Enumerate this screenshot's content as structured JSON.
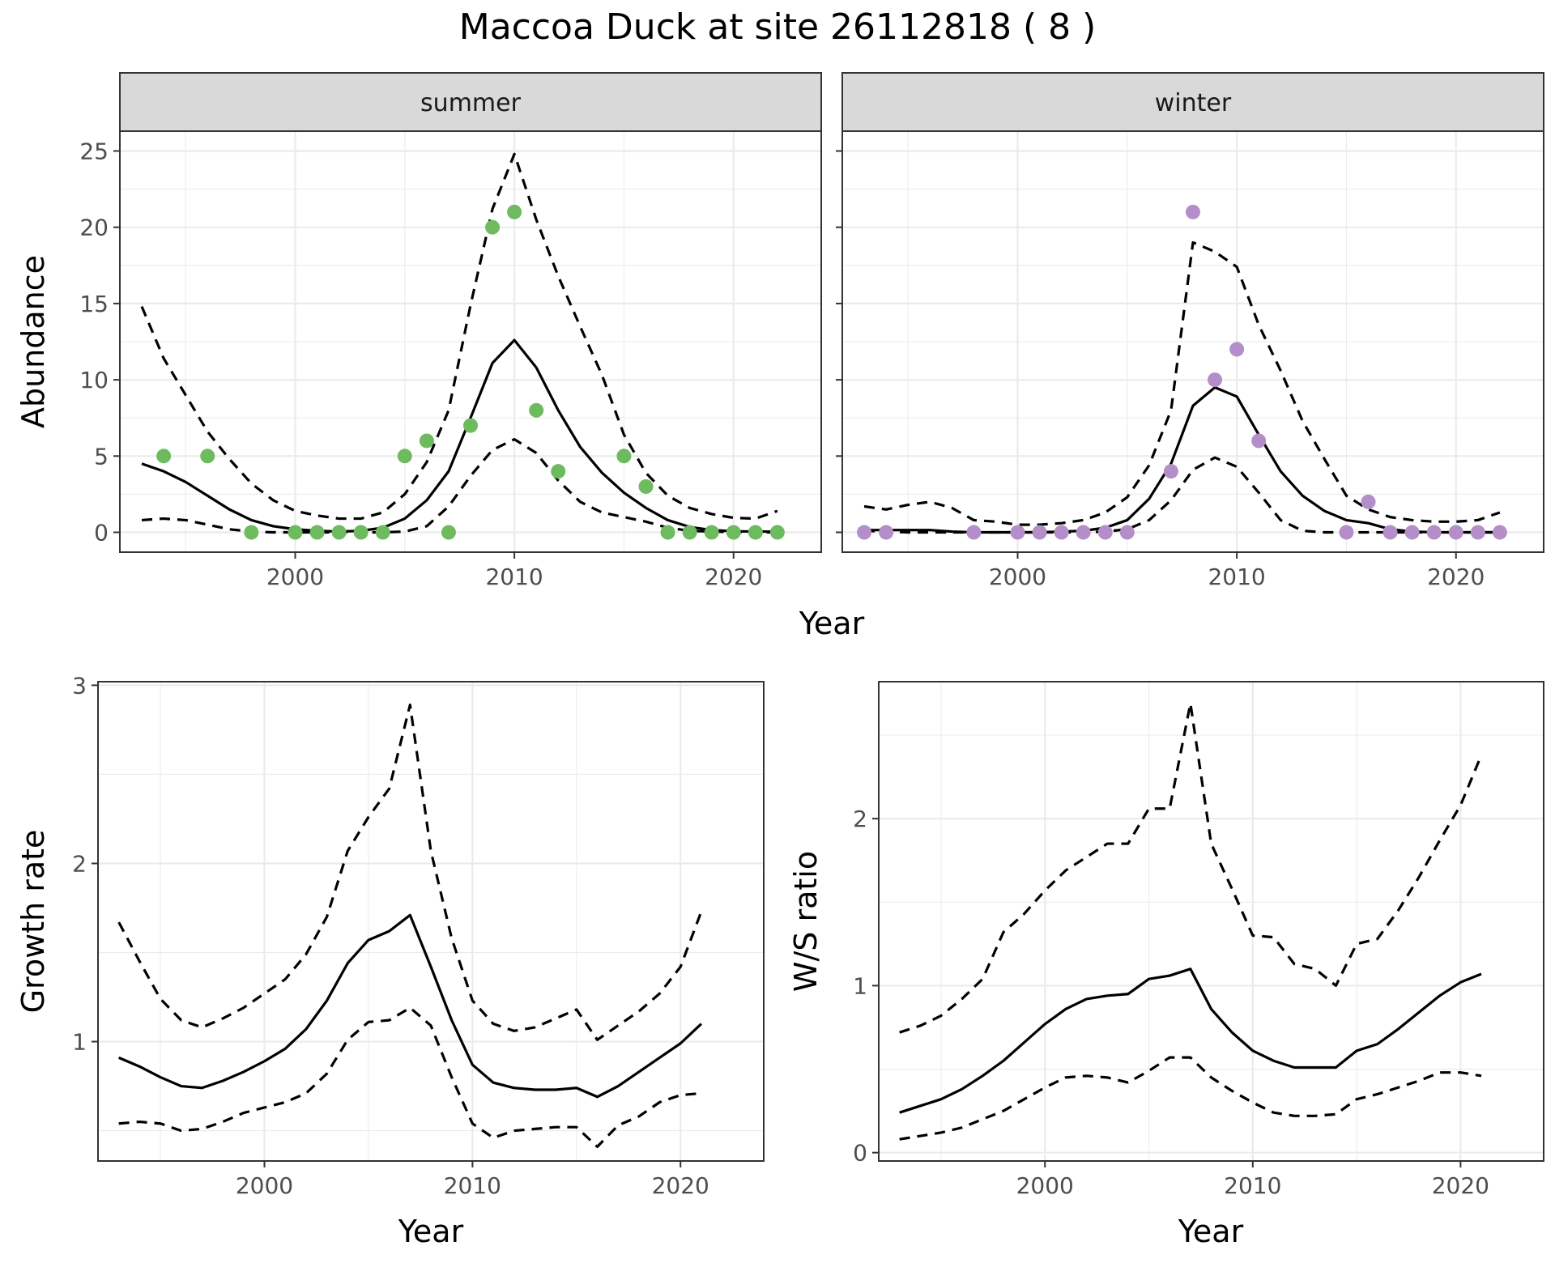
{
  "title": "Maccoa Duck at site 26112818 ( 8 )",
  "colors": {
    "summer_points": "#6dbb5e",
    "winter_points": "#b48ec8",
    "lines": "#000000"
  },
  "chart_data": [
    {
      "type": "line",
      "facet": "summer",
      "xlabel": "Year",
      "ylabel": "Abundance",
      "xlim": [
        1992,
        2024
      ],
      "ylim": [
        -1.3,
        26.3
      ],
      "x_ticks": [
        2000,
        2010,
        2020
      ],
      "y_ticks": [
        0,
        5,
        10,
        15,
        20,
        25
      ],
      "points": {
        "x": [
          1994,
          1996,
          1998,
          2000,
          2001,
          2002,
          2003,
          2004,
          2005,
          2006,
          2007,
          2008,
          2009,
          2010,
          2011,
          2012,
          2015,
          2016,
          2017,
          2018,
          2019,
          2020,
          2021,
          2022
        ],
        "y": [
          5,
          5,
          0,
          0,
          0,
          0,
          0,
          0,
          5,
          6,
          0,
          7,
          20,
          21,
          8,
          4,
          5,
          3,
          0,
          0,
          0,
          0,
          0,
          0
        ]
      },
      "x": [
        1993,
        1994,
        1995,
        1996,
        1997,
        1998,
        1999,
        2000,
        2001,
        2002,
        2003,
        2004,
        2005,
        2006,
        2007,
        2008,
        2009,
        2010,
        2011,
        2012,
        2013,
        2014,
        2015,
        2016,
        2017,
        2018,
        2019,
        2020,
        2021,
        2022
      ],
      "series": [
        {
          "style": "solid",
          "values": [
            4.5,
            4.0,
            3.3,
            2.4,
            1.5,
            0.8,
            0.4,
            0.2,
            0.1,
            0.05,
            0.1,
            0.3,
            0.9,
            2.1,
            4.0,
            7.5,
            11.1,
            12.6,
            10.8,
            8.0,
            5.6,
            3.9,
            2.6,
            1.6,
            0.8,
            0.35,
            0.15,
            0.07,
            0.05,
            0.05
          ]
        },
        {
          "style": "dashed",
          "values": [
            14.8,
            11.4,
            9.0,
            6.6,
            4.8,
            3.2,
            2.1,
            1.4,
            1.1,
            0.9,
            0.9,
            1.3,
            2.5,
            4.6,
            8.0,
            14.9,
            21.2,
            24.8,
            20.5,
            16.8,
            13.5,
            10.3,
            6.4,
            3.9,
            2.4,
            1.6,
            1.2,
            0.95,
            0.9,
            1.4
          ]
        },
        {
          "style": "dashed",
          "values": [
            0.8,
            0.9,
            0.8,
            0.5,
            0.2,
            0.05,
            0.0,
            0.0,
            0.0,
            0.0,
            0.0,
            0.0,
            0.05,
            0.4,
            1.7,
            3.7,
            5.4,
            6.1,
            5.2,
            3.4,
            2.0,
            1.3,
            1.0,
            0.7,
            0.3,
            0.1,
            0.05,
            0.02,
            0.0,
            0.0
          ]
        }
      ]
    },
    {
      "type": "line",
      "facet": "winter",
      "xlabel": "Year",
      "ylabel": "Abundance",
      "xlim": [
        1992,
        2024
      ],
      "ylim": [
        -1.3,
        26.3
      ],
      "x_ticks": [
        2000,
        2010,
        2020
      ],
      "y_ticks": [
        0,
        5,
        10,
        15,
        20,
        25
      ],
      "points": {
        "x": [
          1993,
          1994,
          1998,
          2000,
          2001,
          2002,
          2003,
          2004,
          2005,
          2007,
          2008,
          2009,
          2010,
          2011,
          2015,
          2016,
          2017,
          2018,
          2019,
          2020,
          2021,
          2022
        ],
        "y": [
          0,
          0,
          0,
          0,
          0,
          0,
          0,
          0,
          0,
          4,
          21,
          10,
          12,
          6,
          0,
          2,
          0,
          0,
          0,
          0,
          0,
          0
        ]
      },
      "x": [
        1993,
        1994,
        1995,
        1996,
        1997,
        1998,
        1999,
        2000,
        2001,
        2002,
        2003,
        2004,
        2005,
        2006,
        2007,
        2008,
        2009,
        2010,
        2011,
        2012,
        2013,
        2014,
        2015,
        2016,
        2017,
        2018,
        2019,
        2020,
        2021,
        2022
      ],
      "series": [
        {
          "style": "solid",
          "values": [
            0.15,
            0.15,
            0.15,
            0.15,
            0.05,
            0.0,
            0.0,
            0.0,
            0.0,
            0.05,
            0.1,
            0.3,
            0.8,
            2.2,
            4.5,
            8.3,
            9.5,
            8.9,
            6.4,
            4.0,
            2.4,
            1.4,
            0.8,
            0.6,
            0.2,
            0.05,
            0.0,
            0.0,
            0.0,
            0.0
          ]
        },
        {
          "style": "dashed",
          "values": [
            1.7,
            1.5,
            1.8,
            2.0,
            1.6,
            0.8,
            0.7,
            0.5,
            0.5,
            0.6,
            0.8,
            1.3,
            2.3,
            4.4,
            8.0,
            19.0,
            18.4,
            17.4,
            13.6,
            10.6,
            7.3,
            4.8,
            2.4,
            1.5,
            1.0,
            0.8,
            0.7,
            0.7,
            0.8,
            1.3
          ]
        },
        {
          "style": "dashed",
          "values": [
            0.1,
            0.05,
            0.0,
            0.0,
            0.0,
            0.0,
            0.0,
            0.0,
            0.0,
            0.0,
            0.0,
            0.05,
            0.2,
            0.8,
            2.1,
            4.1,
            4.9,
            4.3,
            2.6,
            0.8,
            0.1,
            0.0,
            0.0,
            0.0,
            0.0,
            0.0,
            0.0,
            0.0,
            0.0,
            0.0
          ]
        }
      ]
    },
    {
      "type": "line",
      "xlabel": "Year",
      "ylabel": "Growth rate",
      "xlim": [
        1992,
        2024
      ],
      "ylim": [
        0.33,
        3.02
      ],
      "x_ticks": [
        2000,
        2010,
        2020
      ],
      "y_ticks": [
        1,
        2,
        3
      ],
      "x": [
        1993,
        1994,
        1995,
        1996,
        1997,
        1998,
        1999,
        2000,
        2001,
        2002,
        2003,
        2004,
        2005,
        2006,
        2007,
        2008,
        2009,
        2010,
        2011,
        2012,
        2013,
        2014,
        2015,
        2016,
        2017,
        2018,
        2019,
        2020,
        2021
      ],
      "series": [
        {
          "style": "solid",
          "values": [
            0.91,
            0.86,
            0.8,
            0.75,
            0.74,
            0.78,
            0.83,
            0.89,
            0.96,
            1.07,
            1.23,
            1.44,
            1.57,
            1.62,
            1.71,
            1.42,
            1.12,
            0.87,
            0.77,
            0.74,
            0.73,
            0.73,
            0.74,
            0.69,
            0.75,
            0.83,
            0.91,
            0.99,
            1.1
          ]
        },
        {
          "style": "dashed",
          "values": [
            1.67,
            1.45,
            1.24,
            1.12,
            1.08,
            1.13,
            1.19,
            1.27,
            1.35,
            1.49,
            1.7,
            2.07,
            2.26,
            2.42,
            2.89,
            2.07,
            1.58,
            1.23,
            1.1,
            1.06,
            1.08,
            1.13,
            1.18,
            1.01,
            1.09,
            1.17,
            1.27,
            1.42,
            1.73
          ]
        },
        {
          "style": "dashed",
          "values": [
            0.54,
            0.55,
            0.54,
            0.5,
            0.51,
            0.55,
            0.6,
            0.63,
            0.66,
            0.71,
            0.82,
            1.01,
            1.11,
            1.12,
            1.19,
            1.09,
            0.8,
            0.54,
            0.46,
            0.5,
            0.51,
            0.52,
            0.52,
            0.41,
            0.53,
            0.58,
            0.66,
            0.7,
            0.71
          ]
        }
      ]
    },
    {
      "type": "line",
      "xlabel": "Year",
      "ylabel": "W/S ratio",
      "xlim": [
        1992,
        2024
      ],
      "ylim": [
        -0.05,
        2.82
      ],
      "x_ticks": [
        2000,
        2010,
        2020
      ],
      "y_ticks": [
        0,
        1,
        2
      ],
      "x": [
        1993,
        1994,
        1995,
        1996,
        1997,
        1998,
        1999,
        2000,
        2001,
        2002,
        2003,
        2004,
        2005,
        2006,
        2007,
        2008,
        2009,
        2010,
        2011,
        2012,
        2013,
        2014,
        2015,
        2016,
        2017,
        2018,
        2019,
        2020,
        2021
      ],
      "series": [
        {
          "style": "solid",
          "values": [
            0.24,
            0.28,
            0.32,
            0.38,
            0.46,
            0.55,
            0.66,
            0.77,
            0.86,
            0.92,
            0.94,
            0.95,
            1.04,
            1.06,
            1.1,
            0.86,
            0.72,
            0.61,
            0.55,
            0.51,
            0.51,
            0.51,
            0.61,
            0.65,
            0.74,
            0.84,
            0.94,
            1.02,
            1.07
          ]
        },
        {
          "style": "dashed",
          "values": [
            0.72,
            0.76,
            0.82,
            0.92,
            1.04,
            1.32,
            1.43,
            1.57,
            1.69,
            1.77,
            1.85,
            1.85,
            2.06,
            2.06,
            2.69,
            1.85,
            1.58,
            1.3,
            1.29,
            1.13,
            1.1,
            1.0,
            1.25,
            1.28,
            1.45,
            1.65,
            1.87,
            2.08,
            2.38
          ]
        },
        {
          "style": "dashed",
          "values": [
            0.08,
            0.1,
            0.12,
            0.15,
            0.2,
            0.25,
            0.32,
            0.39,
            0.45,
            0.46,
            0.45,
            0.42,
            0.49,
            0.57,
            0.57,
            0.45,
            0.37,
            0.3,
            0.24,
            0.22,
            0.22,
            0.23,
            0.32,
            0.35,
            0.39,
            0.43,
            0.48,
            0.48,
            0.46
          ]
        }
      ]
    }
  ]
}
